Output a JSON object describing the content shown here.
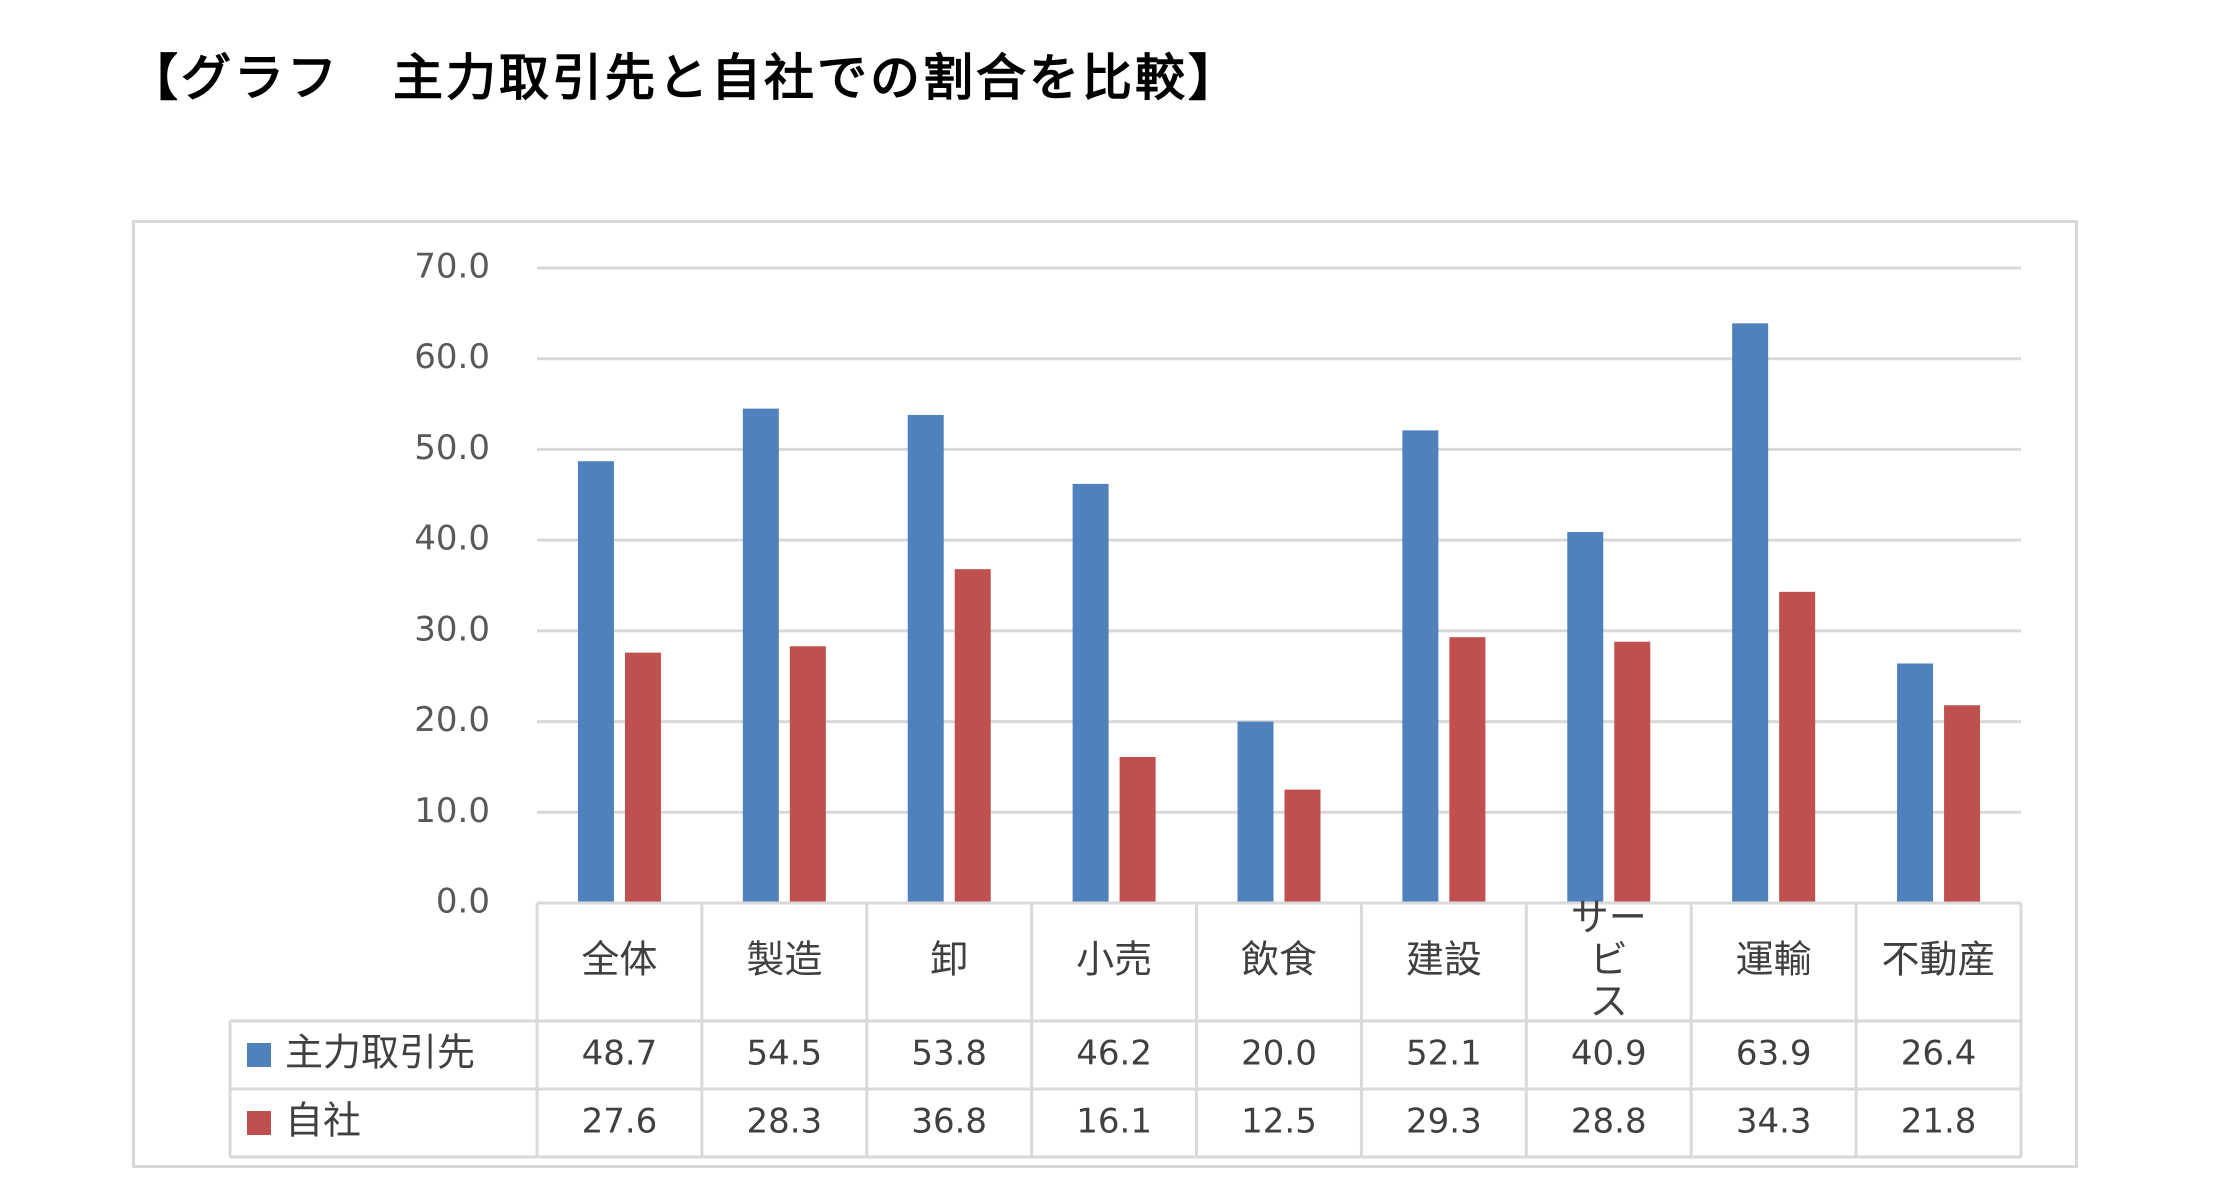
{
  "title": "【グラフ　主力取引先と自社での割合を比較】",
  "chart_data": {
    "type": "bar",
    "title": "",
    "xlabel": "",
    "ylabel": "",
    "ylim": [
      0,
      70
    ],
    "yticks": [
      0,
      10,
      20,
      30,
      40,
      50,
      60,
      70
    ],
    "ytick_labels": [
      "0.0",
      "10.0",
      "20.0",
      "30.0",
      "40.0",
      "50.0",
      "60.0",
      "70.0"
    ],
    "grid": true,
    "legend_placement": "data-table-left",
    "categories": [
      "全体",
      "製造",
      "卸",
      "小売",
      "飲食",
      "建設",
      "サービス",
      "運輸",
      "不動産"
    ],
    "category_display": [
      [
        "全体"
      ],
      [
        "製造"
      ],
      [
        "卸"
      ],
      [
        "小売"
      ],
      [
        "飲食"
      ],
      [
        "建設"
      ],
      [
        "サー",
        "ビ",
        "ス"
      ],
      [
        "運輸"
      ],
      [
        "不動産"
      ]
    ],
    "series": [
      {
        "name": "主力取引先",
        "color": "#4f81bd",
        "values": [
          48.7,
          54.5,
          53.8,
          46.2,
          20.0,
          52.1,
          40.9,
          63.9,
          26.4
        ],
        "labels": [
          "48.7",
          "54.5",
          "53.8",
          "46.2",
          "20.0",
          "52.1",
          "40.9",
          "63.9",
          "26.4"
        ]
      },
      {
        "name": "自社",
        "color": "#c0504d",
        "values": [
          27.6,
          28.3,
          36.8,
          16.1,
          12.5,
          29.3,
          28.8,
          34.3,
          21.8
        ],
        "labels": [
          "27.6",
          "28.3",
          "36.8",
          "16.1",
          "12.5",
          "29.3",
          "28.8",
          "34.3",
          "21.8"
        ]
      }
    ]
  }
}
